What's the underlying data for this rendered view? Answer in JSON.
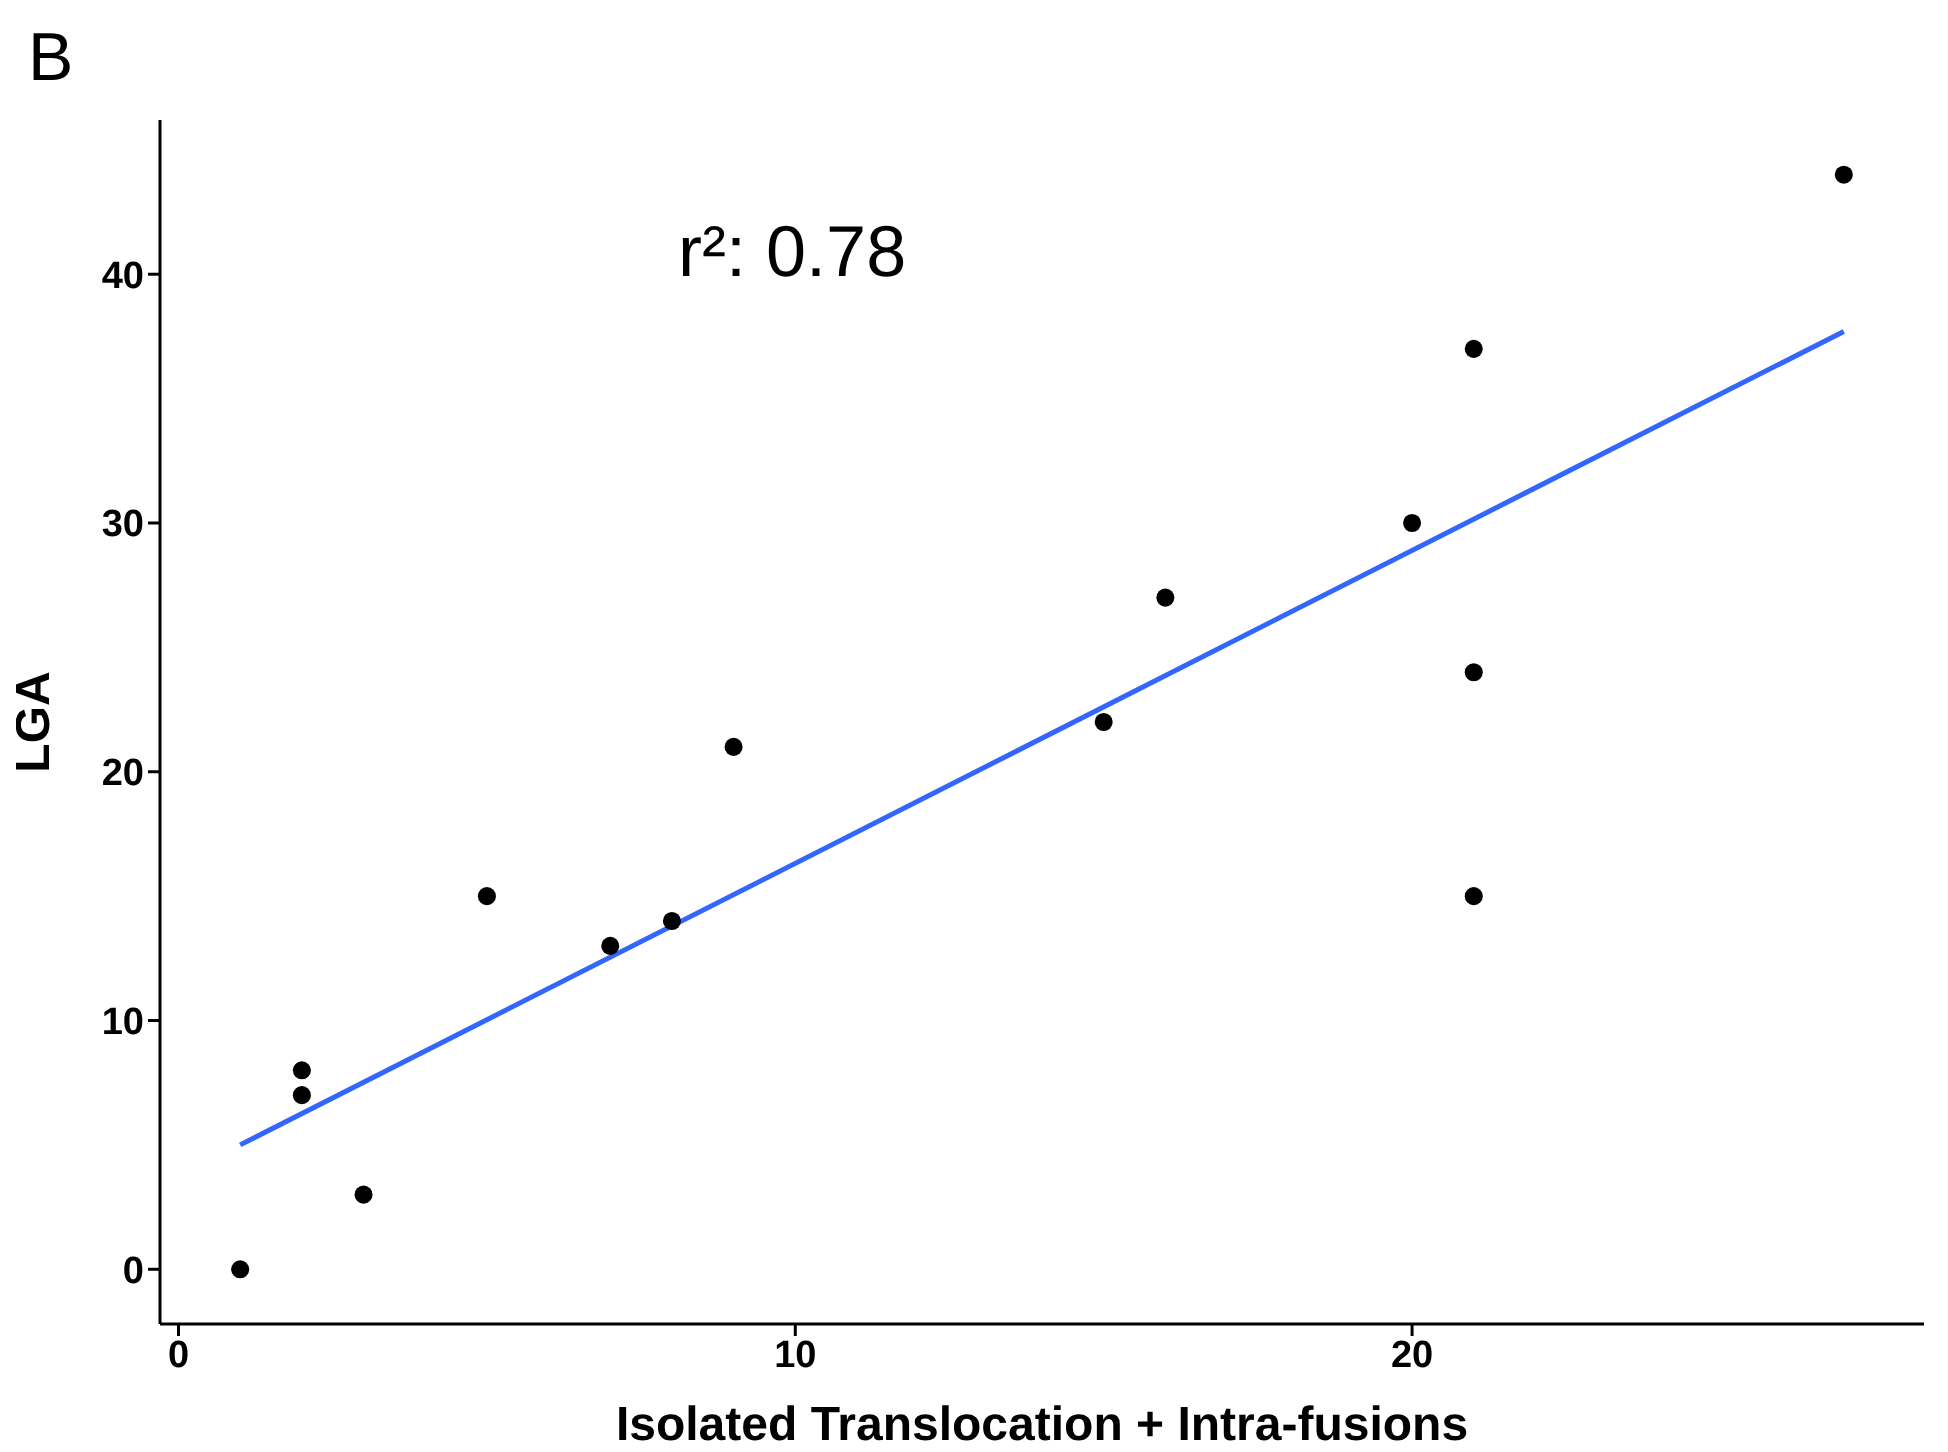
{
  "chart_data": {
    "type": "scatter",
    "xlabel": "Isolated Translocation + Intra-fusions",
    "ylabel": "LGA",
    "annotations": [
      "B",
      "r²: 0.78"
    ],
    "xlim": [
      -0.3,
      28.3
    ],
    "xticks": [
      0,
      10,
      20
    ],
    "ylim": [
      -2.2,
      46.2
    ],
    "yticks": [
      0,
      10,
      20,
      30,
      40
    ],
    "grid": false,
    "series": [
      {
        "type": "scatter",
        "marker": "circle",
        "color": "#000000",
        "x": [
          1,
          2,
          2,
          3,
          5,
          7,
          8,
          9,
          15,
          16,
          20,
          21,
          21,
          21,
          27
        ],
        "values": [
          0,
          8,
          7,
          3,
          15,
          13,
          14,
          21,
          22,
          27,
          30,
          37,
          24,
          15,
          44
        ]
      },
      {
        "type": "line",
        "marker": "none",
        "color": "#3366ff",
        "x": [
          1,
          27
        ],
        "values": [
          5,
          37.7
        ]
      }
    ]
  }
}
